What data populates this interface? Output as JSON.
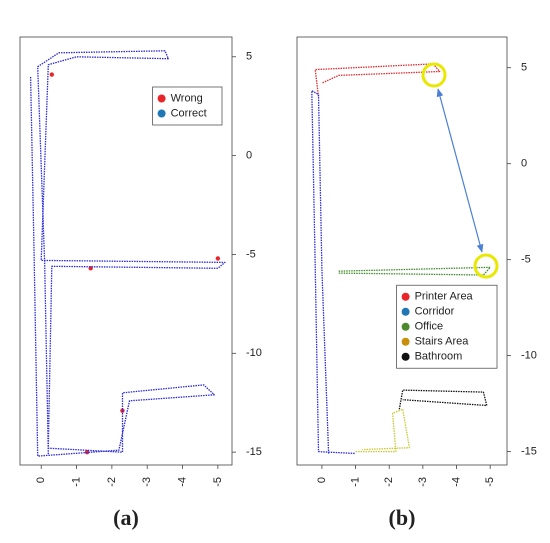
{
  "chart_data": [
    {
      "type": "line",
      "caption": "(a)",
      "legend": "upper right",
      "xlim": [
        0.6,
        -5.4
      ],
      "xticks": [
        0,
        -1,
        -2,
        -3,
        -4,
        -5
      ],
      "ylim": [
        -15.65,
        6
      ],
      "yticks": [
        5,
        0,
        -5,
        -10,
        -15
      ],
      "series": [
        {
          "name": "Wrong",
          "color": "#e8262a",
          "legend_color": "#e8262a",
          "style": "points",
          "x": [
            -0.3,
            -1.4,
            -5.0,
            -2.3,
            -1.3
          ],
          "values": [
            4.1,
            -5.7,
            -5.2,
            -12.9,
            -15.0
          ]
        },
        {
          "name": "Correct",
          "color": "#2a2ad8",
          "legend_color": "#1f77b4",
          "style": "line",
          "x": [
            -0.2,
            -0.1,
            0.1,
            -0.5,
            -3.5,
            -3.6,
            -1.0,
            -0.2,
            0.0,
            -5.2,
            -5.0,
            -0.3,
            -0.2,
            -2.3,
            -2.3,
            -4.6,
            -4.9,
            -2.5,
            -2.2,
            0.1,
            0.2,
            0.3
          ],
          "values": [
            -15.1,
            -5.5,
            4.5,
            5.2,
            5.3,
            4.9,
            5.0,
            4.6,
            -5.3,
            -5.4,
            -5.7,
            -5.6,
            -14.8,
            -15.0,
            -12.0,
            -11.6,
            -12.1,
            -12.4,
            -14.9,
            -15.2,
            -5.0,
            4.0
          ]
        }
      ]
    },
    {
      "type": "line",
      "caption": "(b)",
      "legend": "center right",
      "xlim": [
        0.74,
        -5.5
      ],
      "xticks": [
        0,
        -1,
        -2,
        -3,
        -4,
        -5
      ],
      "ylim": [
        -15.7,
        6.6
      ],
      "yticks": [
        5,
        0,
        -5,
        -10,
        -15
      ],
      "series": [
        {
          "name": "Printer Area",
          "color": "#e8262a",
          "legend_color": "#e8262a",
          "style": "line",
          "x": [
            0.1,
            0.2,
            -3.3,
            -3.5,
            -0.5,
            0.0
          ],
          "values": [
            3.5,
            4.9,
            5.2,
            4.8,
            4.6,
            4.2
          ]
        },
        {
          "name": "Corridor",
          "color": "#2a2ad8",
          "legend_color": "#1f77b4",
          "style": "line",
          "x": [
            -0.2,
            0.0,
            0.1,
            0.3,
            0.2,
            0.1,
            -1.0
          ],
          "values": [
            -15.1,
            -5.5,
            3.6,
            3.8,
            -5.3,
            -15.0,
            -15.1
          ]
        },
        {
          "name": "Office",
          "color": "#3f8a2a",
          "legend_color": "#4a8a2a",
          "style": "line",
          "x": [
            -0.5,
            -5.0,
            -4.8,
            -0.5
          ],
          "values": [
            -5.6,
            -5.4,
            -5.8,
            -5.7
          ]
        },
        {
          "name": "Stairs Area",
          "color": "#c8c830",
          "legend_color": "#c8900a",
          "style": "line",
          "x": [
            -1.0,
            -2.2,
            -2.1,
            -2.4,
            -2.6,
            -1.2
          ],
          "values": [
            -15.0,
            -15.0,
            -13.0,
            -12.8,
            -14.8,
            -14.9
          ]
        },
        {
          "name": "Bathroom",
          "color": "#111111",
          "legend_color": "#111111",
          "style": "line",
          "x": [
            -2.3,
            -2.4,
            -4.8,
            -4.9,
            -2.4
          ],
          "values": [
            -12.8,
            -11.8,
            -11.9,
            -12.6,
            -12.3
          ]
        }
      ]
    }
  ]
}
